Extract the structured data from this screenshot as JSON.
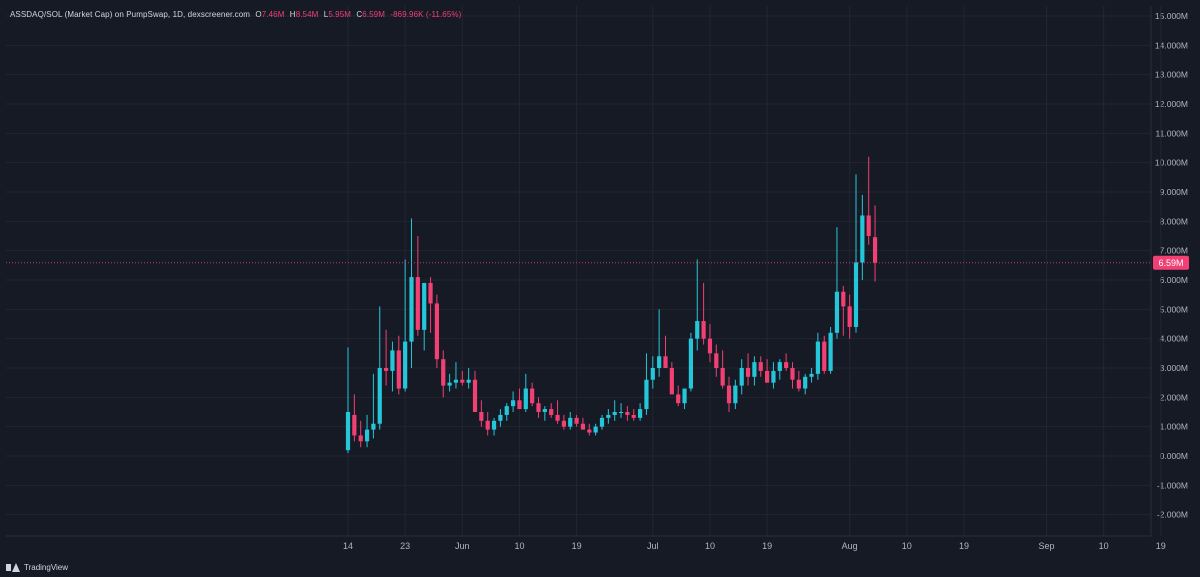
{
  "legend": {
    "symbol": "ASSDAQ/SOL (Market Cap) on PumpSwap, 1D, dexscreener.com",
    "o_label": "O",
    "o_value": "7.46M",
    "h_label": "H",
    "h_value": "8.54M",
    "l_label": "L",
    "l_value": "5.95M",
    "c_label": "C",
    "c_value": "6.59M",
    "change": "-869.96K (-11.65%)"
  },
  "footer": {
    "brand": "TradingView"
  },
  "colors": {
    "background": "#161a25",
    "grid": "#232632",
    "up": "#26c6da",
    "down": "#f23f74",
    "axis_text": "#b2b5be",
    "price_line": "#f23f74"
  },
  "chart_data": {
    "type": "candlestick",
    "timeframe": "1D",
    "ylim": [
      -2.5,
      15.2
    ],
    "y_ticks": [
      {
        "value": 15,
        "label": "15.000M"
      },
      {
        "value": 14,
        "label": "14.000M"
      },
      {
        "value": 13,
        "label": "13.000M"
      },
      {
        "value": 12,
        "label": "12.000M"
      },
      {
        "value": 11,
        "label": "11.000M"
      },
      {
        "value": 10,
        "label": "10.000M"
      },
      {
        "value": 9,
        "label": "9.000M"
      },
      {
        "value": 8,
        "label": "8.000M"
      },
      {
        "value": 7,
        "label": "7.000M"
      },
      {
        "value": 6,
        "label": "6.000M"
      },
      {
        "value": 5,
        "label": "5.000M"
      },
      {
        "value": 4,
        "label": "4.000M"
      },
      {
        "value": 3,
        "label": "3.000M"
      },
      {
        "value": 2,
        "label": "2.000M"
      },
      {
        "value": 1,
        "label": "1.000M"
      },
      {
        "value": 0,
        "label": "0.000M"
      },
      {
        "value": -1,
        "label": "-1.000M"
      },
      {
        "value": -2,
        "label": "-2.000M"
      }
    ],
    "x_ticks": [
      {
        "day": 0,
        "label": "14"
      },
      {
        "day": 9,
        "label": "23"
      },
      {
        "day": 18,
        "label": "Jun"
      },
      {
        "day": 27,
        "label": "10"
      },
      {
        "day": 36,
        "label": "19"
      },
      {
        "day": 48,
        "label": "Jul"
      },
      {
        "day": 57,
        "label": "10"
      },
      {
        "day": 66,
        "label": "19"
      },
      {
        "day": 79,
        "label": "Aug"
      },
      {
        "day": 88,
        "label": "10"
      },
      {
        "day": 97,
        "label": "19"
      },
      {
        "day": 110,
        "label": "Sep"
      },
      {
        "day": 119,
        "label": "10"
      },
      {
        "day": 128,
        "label": "19"
      }
    ],
    "last_price": {
      "value": 6.59,
      "label": "6.59M"
    },
    "candles": [
      {
        "o": 0.2,
        "h": 3.7,
        "l": 0.1,
        "c": 1.5
      },
      {
        "o": 1.4,
        "h": 2.1,
        "l": 0.5,
        "c": 0.7
      },
      {
        "o": 0.7,
        "h": 1.2,
        "l": 0.3,
        "c": 0.5
      },
      {
        "o": 0.5,
        "h": 1.4,
        "l": 0.3,
        "c": 0.9
      },
      {
        "o": 0.9,
        "h": 2.8,
        "l": 0.6,
        "c": 1.1
      },
      {
        "o": 1.1,
        "h": 5.1,
        "l": 0.9,
        "c": 3.0
      },
      {
        "o": 3.0,
        "h": 4.3,
        "l": 2.4,
        "c": 2.9
      },
      {
        "o": 2.9,
        "h": 3.9,
        "l": 2.2,
        "c": 3.6
      },
      {
        "o": 3.6,
        "h": 4.1,
        "l": 2.1,
        "c": 2.3
      },
      {
        "o": 2.3,
        "h": 6.7,
        "l": 2.2,
        "c": 3.9
      },
      {
        "o": 3.9,
        "h": 8.1,
        "l": 3.0,
        "c": 6.1
      },
      {
        "o": 6.1,
        "h": 7.5,
        "l": 4.1,
        "c": 4.3
      },
      {
        "o": 4.3,
        "h": 5.9,
        "l": 3.6,
        "c": 5.9
      },
      {
        "o": 5.9,
        "h": 6.1,
        "l": 4.2,
        "c": 5.2
      },
      {
        "o": 5.2,
        "h": 5.5,
        "l": 3.0,
        "c": 3.3
      },
      {
        "o": 3.3,
        "h": 3.6,
        "l": 2.0,
        "c": 2.4
      },
      {
        "o": 2.4,
        "h": 2.8,
        "l": 2.2,
        "c": 2.5
      },
      {
        "o": 2.5,
        "h": 3.2,
        "l": 2.3,
        "c": 2.6
      },
      {
        "o": 2.6,
        "h": 2.9,
        "l": 2.4,
        "c": 2.5
      },
      {
        "o": 2.5,
        "h": 3.0,
        "l": 2.3,
        "c": 2.6
      },
      {
        "o": 2.6,
        "h": 2.9,
        "l": 1.5,
        "c": 1.5
      },
      {
        "o": 1.5,
        "h": 1.9,
        "l": 1.0,
        "c": 1.2
      },
      {
        "o": 1.2,
        "h": 1.5,
        "l": 0.7,
        "c": 0.9
      },
      {
        "o": 0.9,
        "h": 1.3,
        "l": 0.7,
        "c": 1.2
      },
      {
        "o": 1.2,
        "h": 1.6,
        "l": 1.0,
        "c": 1.4
      },
      {
        "o": 1.4,
        "h": 1.8,
        "l": 1.2,
        "c": 1.7
      },
      {
        "o": 1.7,
        "h": 2.2,
        "l": 1.5,
        "c": 1.9
      },
      {
        "o": 1.9,
        "h": 2.3,
        "l": 1.6,
        "c": 1.6
      },
      {
        "o": 1.6,
        "h": 2.8,
        "l": 1.5,
        "c": 2.3
      },
      {
        "o": 2.3,
        "h": 2.5,
        "l": 1.7,
        "c": 1.8
      },
      {
        "o": 1.8,
        "h": 2.0,
        "l": 1.3,
        "c": 1.5
      },
      {
        "o": 1.5,
        "h": 1.7,
        "l": 1.2,
        "c": 1.6
      },
      {
        "o": 1.6,
        "h": 1.8,
        "l": 1.3,
        "c": 1.4
      },
      {
        "o": 1.4,
        "h": 1.9,
        "l": 1.1,
        "c": 1.2
      },
      {
        "o": 1.2,
        "h": 1.4,
        "l": 0.9,
        "c": 1.0
      },
      {
        "o": 1.0,
        "h": 1.5,
        "l": 0.9,
        "c": 1.3
      },
      {
        "o": 1.3,
        "h": 1.4,
        "l": 1.0,
        "c": 1.1
      },
      {
        "o": 1.1,
        "h": 1.3,
        "l": 0.9,
        "c": 0.9
      },
      {
        "o": 0.9,
        "h": 1.1,
        "l": 0.7,
        "c": 0.8
      },
      {
        "o": 0.8,
        "h": 1.1,
        "l": 0.7,
        "c": 1.0
      },
      {
        "o": 1.0,
        "h": 1.4,
        "l": 0.9,
        "c": 1.3
      },
      {
        "o": 1.3,
        "h": 1.6,
        "l": 1.1,
        "c": 1.4
      },
      {
        "o": 1.4,
        "h": 1.9,
        "l": 1.2,
        "c": 1.5
      },
      {
        "o": 1.5,
        "h": 1.8,
        "l": 1.3,
        "c": 1.5
      },
      {
        "o": 1.5,
        "h": 1.7,
        "l": 1.2,
        "c": 1.4
      },
      {
        "o": 1.4,
        "h": 1.6,
        "l": 1.2,
        "c": 1.3
      },
      {
        "o": 1.3,
        "h": 1.8,
        "l": 1.2,
        "c": 1.6
      },
      {
        "o": 1.6,
        "h": 3.5,
        "l": 1.4,
        "c": 2.6
      },
      {
        "o": 2.6,
        "h": 3.4,
        "l": 2.3,
        "c": 3.0
      },
      {
        "o": 3.0,
        "h": 5.0,
        "l": 2.7,
        "c": 3.4
      },
      {
        "o": 3.4,
        "h": 4.1,
        "l": 3.0,
        "c": 3.0
      },
      {
        "o": 3.0,
        "h": 3.2,
        "l": 2.1,
        "c": 2.1
      },
      {
        "o": 2.1,
        "h": 2.4,
        "l": 1.7,
        "c": 1.8
      },
      {
        "o": 1.8,
        "h": 2.3,
        "l": 1.6,
        "c": 2.3
      },
      {
        "o": 2.3,
        "h": 4.2,
        "l": 2.2,
        "c": 4.0
      },
      {
        "o": 4.0,
        "h": 6.7,
        "l": 3.6,
        "c": 4.6
      },
      {
        "o": 4.6,
        "h": 5.9,
        "l": 3.8,
        "c": 4.0
      },
      {
        "o": 4.0,
        "h": 4.5,
        "l": 3.2,
        "c": 3.5
      },
      {
        "o": 3.5,
        "h": 3.8,
        "l": 2.7,
        "c": 3.0
      },
      {
        "o": 3.0,
        "h": 3.6,
        "l": 2.3,
        "c": 2.4
      },
      {
        "o": 2.4,
        "h": 2.7,
        "l": 1.5,
        "c": 1.8
      },
      {
        "o": 1.8,
        "h": 2.6,
        "l": 1.6,
        "c": 2.4
      },
      {
        "o": 2.4,
        "h": 3.3,
        "l": 2.1,
        "c": 3.0
      },
      {
        "o": 3.0,
        "h": 3.5,
        "l": 2.4,
        "c": 2.7
      },
      {
        "o": 2.7,
        "h": 3.4,
        "l": 2.4,
        "c": 3.2
      },
      {
        "o": 3.2,
        "h": 3.4,
        "l": 2.7,
        "c": 2.9
      },
      {
        "o": 2.9,
        "h": 3.3,
        "l": 2.5,
        "c": 2.5
      },
      {
        "o": 2.5,
        "h": 3.2,
        "l": 2.3,
        "c": 2.9
      },
      {
        "o": 2.9,
        "h": 3.3,
        "l": 2.6,
        "c": 3.2
      },
      {
        "o": 3.2,
        "h": 3.5,
        "l": 2.9,
        "c": 3.0
      },
      {
        "o": 3.0,
        "h": 3.2,
        "l": 2.3,
        "c": 2.6
      },
      {
        "o": 2.6,
        "h": 2.9,
        "l": 2.2,
        "c": 2.3
      },
      {
        "o": 2.3,
        "h": 2.8,
        "l": 2.1,
        "c": 2.7
      },
      {
        "o": 2.7,
        "h": 3.0,
        "l": 2.5,
        "c": 2.8
      },
      {
        "o": 2.8,
        "h": 4.2,
        "l": 2.6,
        "c": 3.9
      },
      {
        "o": 3.9,
        "h": 4.1,
        "l": 2.8,
        "c": 2.9
      },
      {
        "o": 2.9,
        "h": 4.4,
        "l": 2.8,
        "c": 4.2
      },
      {
        "o": 4.2,
        "h": 7.8,
        "l": 4.0,
        "c": 5.6
      },
      {
        "o": 5.6,
        "h": 5.8,
        "l": 4.1,
        "c": 5.1
      },
      {
        "o": 5.1,
        "h": 5.5,
        "l": 4.0,
        "c": 4.4
      },
      {
        "o": 4.4,
        "h": 9.6,
        "l": 4.2,
        "c": 6.6
      },
      {
        "o": 6.6,
        "h": 8.9,
        "l": 6.0,
        "c": 8.2
      },
      {
        "o": 8.2,
        "h": 10.2,
        "l": 7.2,
        "c": 7.5
      },
      {
        "o": 7.46,
        "h": 8.54,
        "l": 5.95,
        "c": 6.59
      }
    ]
  }
}
